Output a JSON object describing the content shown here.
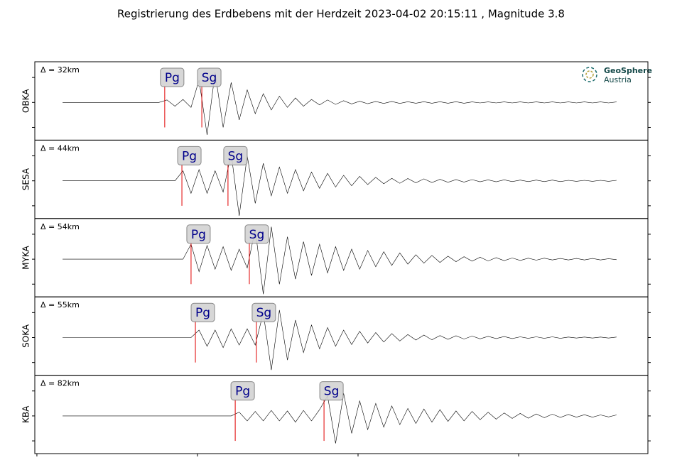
{
  "chart_data": {
    "type": "line",
    "title": "Registrierung des Erdbebens mit der Herdzeit 2023-04-02 20:15:11 , Magnitude 3.8",
    "logo": [
      "GeoSphere",
      "Austria"
    ],
    "x": [
      1.6,
      2.1,
      2.6,
      3.1,
      3.6,
      4.1,
      4.6,
      5.1,
      5.6,
      6.1,
      6.6,
      7.1,
      7.6,
      8.1,
      8.6,
      9.1,
      9.6,
      10.1,
      10.6,
      11.1,
      11.6,
      12.1,
      12.6,
      13.1,
      13.6,
      14.1,
      14.6,
      15.1,
      15.6,
      16.1,
      16.6,
      17.1,
      17.6,
      18.1,
      18.6,
      19.1,
      19.6,
      20.1,
      20.6,
      21.1,
      21.6,
      22.1,
      22.6,
      23.1,
      23.6,
      24.1,
      24.6,
      25.1,
      25.6,
      26.1,
      26.6,
      27.1,
      27.6,
      28.1,
      28.6,
      29.1,
      29.6,
      30.1,
      30.6,
      31.1,
      31.6,
      32.1,
      32.6,
      33.1,
      33.6,
      34.1,
      34.6,
      35.1,
      35.6,
      36.1
    ],
    "xlim": [
      -0.13,
      38.05
    ],
    "xticks": [
      0,
      10,
      20,
      30
    ],
    "ylim": [
      -1.51,
      1.63
    ],
    "yticks": [
      -1,
      0,
      1
    ],
    "line_color": "#000000",
    "pick_color": "#e00000",
    "series": [
      {
        "name": "OBKA",
        "annotation": "Δ = 32km",
        "picks": [
          {
            "label": "Pg",
            "x": 7.96
          },
          {
            "label": "Sg",
            "x": 10.27
          }
        ],
        "values": [
          0,
          0,
          0,
          0,
          0,
          0,
          0,
          0,
          0,
          0,
          0,
          0,
          0,
          0.1,
          -0.15,
          0.12,
          -0.2,
          0.9,
          -1.3,
          1.2,
          -1.0,
          0.8,
          -0.7,
          0.5,
          -0.45,
          0.35,
          -0.3,
          0.25,
          -0.2,
          0.18,
          -0.15,
          0.12,
          -0.1,
          0.1,
          -0.08,
          0.07,
          -0.06,
          0.05,
          -0.05,
          0.04,
          -0.04,
          0.04,
          -0.04,
          0.03,
          -0.03,
          0.03,
          -0.03,
          0.03,
          -0.03,
          0.03,
          -0.03,
          0.02,
          -0.02,
          0.02,
          -0.02,
          0.02,
          -0.02,
          0.02,
          -0.02,
          0.02,
          -0.02,
          0.02,
          -0.02,
          0.02,
          -0.02,
          0.02,
          -0.02,
          0.02,
          -0.02,
          0.02
        ]
      },
      {
        "name": "SESA",
        "annotation": "Δ = 44km",
        "picks": [
          {
            "label": "Pg",
            "x": 9.03
          },
          {
            "label": "Sg",
            "x": 11.9
          }
        ],
        "values": [
          0,
          0,
          0,
          0,
          0,
          0,
          0,
          0,
          0,
          0,
          0,
          0,
          0,
          0,
          0,
          0.4,
          -0.5,
          0.45,
          -0.5,
          0.4,
          -0.45,
          1.1,
          -1.4,
          1.0,
          -0.9,
          0.7,
          -0.6,
          0.55,
          -0.5,
          0.45,
          -0.4,
          0.35,
          -0.3,
          0.3,
          -0.25,
          0.22,
          -0.2,
          0.18,
          -0.15,
          0.14,
          -0.12,
          0.1,
          -0.1,
          0.09,
          -0.08,
          0.08,
          -0.07,
          0.06,
          -0.06,
          0.05,
          -0.05,
          0.05,
          -0.04,
          0.04,
          -0.04,
          0.04,
          -0.03,
          0.03,
          -0.03,
          0.03,
          -0.03,
          0.03,
          -0.03,
          0.02,
          -0.02,
          0.02,
          -0.02,
          0.02,
          -0.02,
          0.02
        ]
      },
      {
        "name": "MYKA",
        "annotation": "Δ = 54km",
        "picks": [
          {
            "label": "Pg",
            "x": 9.6
          },
          {
            "label": "Sg",
            "x": 13.23
          }
        ],
        "values": [
          0,
          0,
          0,
          0,
          0,
          0,
          0,
          0,
          0,
          0,
          0,
          0,
          0,
          0,
          0,
          0,
          0.6,
          -0.5,
          0.55,
          -0.4,
          0.5,
          -0.45,
          0.4,
          -0.35,
          1.2,
          -1.4,
          1.3,
          -1.0,
          0.9,
          -0.8,
          0.7,
          -0.65,
          0.6,
          -0.55,
          0.5,
          -0.45,
          0.4,
          -0.4,
          0.35,
          -0.3,
          0.3,
          -0.25,
          0.25,
          -0.2,
          0.18,
          -0.16,
          0.15,
          -0.13,
          0.12,
          -0.1,
          0.1,
          -0.08,
          0.08,
          -0.07,
          0.06,
          -0.06,
          0.05,
          -0.05,
          0.04,
          -0.04,
          0.04,
          -0.03,
          0.03,
          -0.03,
          0.03,
          -0.03,
          0.03,
          -0.03,
          0.02,
          -0.02
        ]
      },
      {
        "name": "SOKA",
        "annotation": "Δ = 55km",
        "picks": [
          {
            "label": "Pg",
            "x": 9.87
          },
          {
            "label": "Sg",
            "x": 13.67
          }
        ],
        "values": [
          0,
          0,
          0,
          0,
          0,
          0,
          0,
          0,
          0,
          0,
          0,
          0,
          0,
          0,
          0,
          0,
          0,
          0.3,
          -0.35,
          0.3,
          -0.4,
          0.35,
          -0.3,
          0.35,
          -0.3,
          1.0,
          -1.3,
          1.1,
          -0.9,
          0.7,
          -0.6,
          0.5,
          -0.45,
          0.4,
          -0.35,
          0.3,
          -0.28,
          0.25,
          -0.22,
          0.2,
          -0.18,
          0.16,
          -0.14,
          0.12,
          -0.1,
          0.1,
          -0.09,
          0.08,
          -0.07,
          0.07,
          -0.06,
          0.06,
          -0.05,
          0.05,
          -0.04,
          0.04,
          -0.04,
          0.03,
          -0.03,
          0.03,
          -0.03,
          0.03,
          -0.03,
          0.02,
          -0.02,
          0.02,
          -0.02,
          0.02,
          -0.02,
          0.02
        ]
      },
      {
        "name": "KBA",
        "annotation": "Δ = 82km",
        "picks": [
          {
            "label": "Pg",
            "x": 12.35
          },
          {
            "label": "Sg",
            "x": 17.88
          }
        ],
        "values": [
          0,
          0,
          0,
          0,
          0,
          0,
          0,
          0,
          0,
          0,
          0,
          0,
          0,
          0,
          0,
          0,
          0,
          0,
          0,
          0,
          0,
          0,
          0.15,
          -0.2,
          0.18,
          -0.2,
          0.22,
          -0.2,
          0.2,
          -0.25,
          0.22,
          -0.2,
          0.25,
          0.8,
          -1.1,
          0.9,
          -0.7,
          0.6,
          -0.55,
          0.5,
          -0.45,
          0.4,
          -0.35,
          0.3,
          -0.3,
          0.28,
          -0.25,
          0.25,
          -0.22,
          0.2,
          -0.2,
          0.18,
          -0.15,
          0.15,
          -0.13,
          0.12,
          -0.1,
          0.1,
          -0.09,
          0.08,
          -0.07,
          0.07,
          -0.06,
          0.06,
          -0.05,
          0.05,
          -0.05,
          0.04,
          -0.04,
          0.04
        ]
      }
    ]
  }
}
